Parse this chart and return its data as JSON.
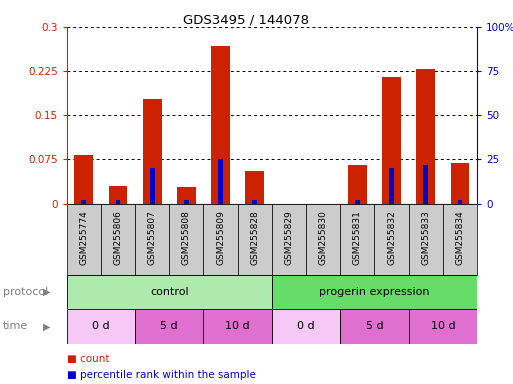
{
  "title": "GDS3495 / 144078",
  "samples": [
    "GSM255774",
    "GSM255806",
    "GSM255807",
    "GSM255808",
    "GSM255809",
    "GSM255828",
    "GSM255829",
    "GSM255830",
    "GSM255831",
    "GSM255832",
    "GSM255833",
    "GSM255834"
  ],
  "count_values": [
    0.083,
    0.03,
    0.178,
    0.028,
    0.268,
    0.055,
    0.0,
    0.0,
    0.065,
    0.215,
    0.228,
    0.068
  ],
  "percentile_values": [
    2,
    2,
    20,
    2,
    25,
    2,
    0,
    0,
    2,
    20,
    22,
    2
  ],
  "ylim_left": [
    0,
    0.3
  ],
  "ylim_right": [
    0,
    100
  ],
  "yticks_left": [
    0,
    0.075,
    0.15,
    0.225,
    0.3
  ],
  "yticks_right": [
    0,
    25,
    50,
    75,
    100
  ],
  "ytick_labels_left": [
    "0",
    "0.075",
    "0.15",
    "0.225",
    "0.3"
  ],
  "ytick_labels_right": [
    "0",
    "25",
    "50",
    "75",
    "100%"
  ],
  "protocol_groups": [
    {
      "label": "control",
      "start": 0,
      "end": 6,
      "color": "#aeeaae"
    },
    {
      "label": "progerin expression",
      "start": 6,
      "end": 12,
      "color": "#66dd66"
    }
  ],
  "time_groups": [
    {
      "label": "0 d",
      "start": 0,
      "end": 2,
      "color": "#f5c8f5"
    },
    {
      "label": "5 d",
      "start": 2,
      "end": 4,
      "color": "#e070d0"
    },
    {
      "label": "10 d",
      "start": 4,
      "end": 6,
      "color": "#e070d0"
    },
    {
      "label": "0 d",
      "start": 6,
      "end": 8,
      "color": "#f5c8f5"
    },
    {
      "label": "5 d",
      "start": 8,
      "end": 10,
      "color": "#e070d0"
    },
    {
      "label": "10 d",
      "start": 10,
      "end": 12,
      "color": "#e070d0"
    }
  ],
  "bar_color": "#cc2200",
  "percentile_color": "#0000cc",
  "bar_width": 0.55,
  "background_color": "#ffffff",
  "sample_bg_color": "#cccccc",
  "legend_items": [
    {
      "color": "#cc2200",
      "label": "count"
    },
    {
      "color": "#0000cc",
      "label": "percentile rank within the sample"
    }
  ],
  "left_axis_color": "#cc2200",
  "right_axis_color": "#0000cc"
}
